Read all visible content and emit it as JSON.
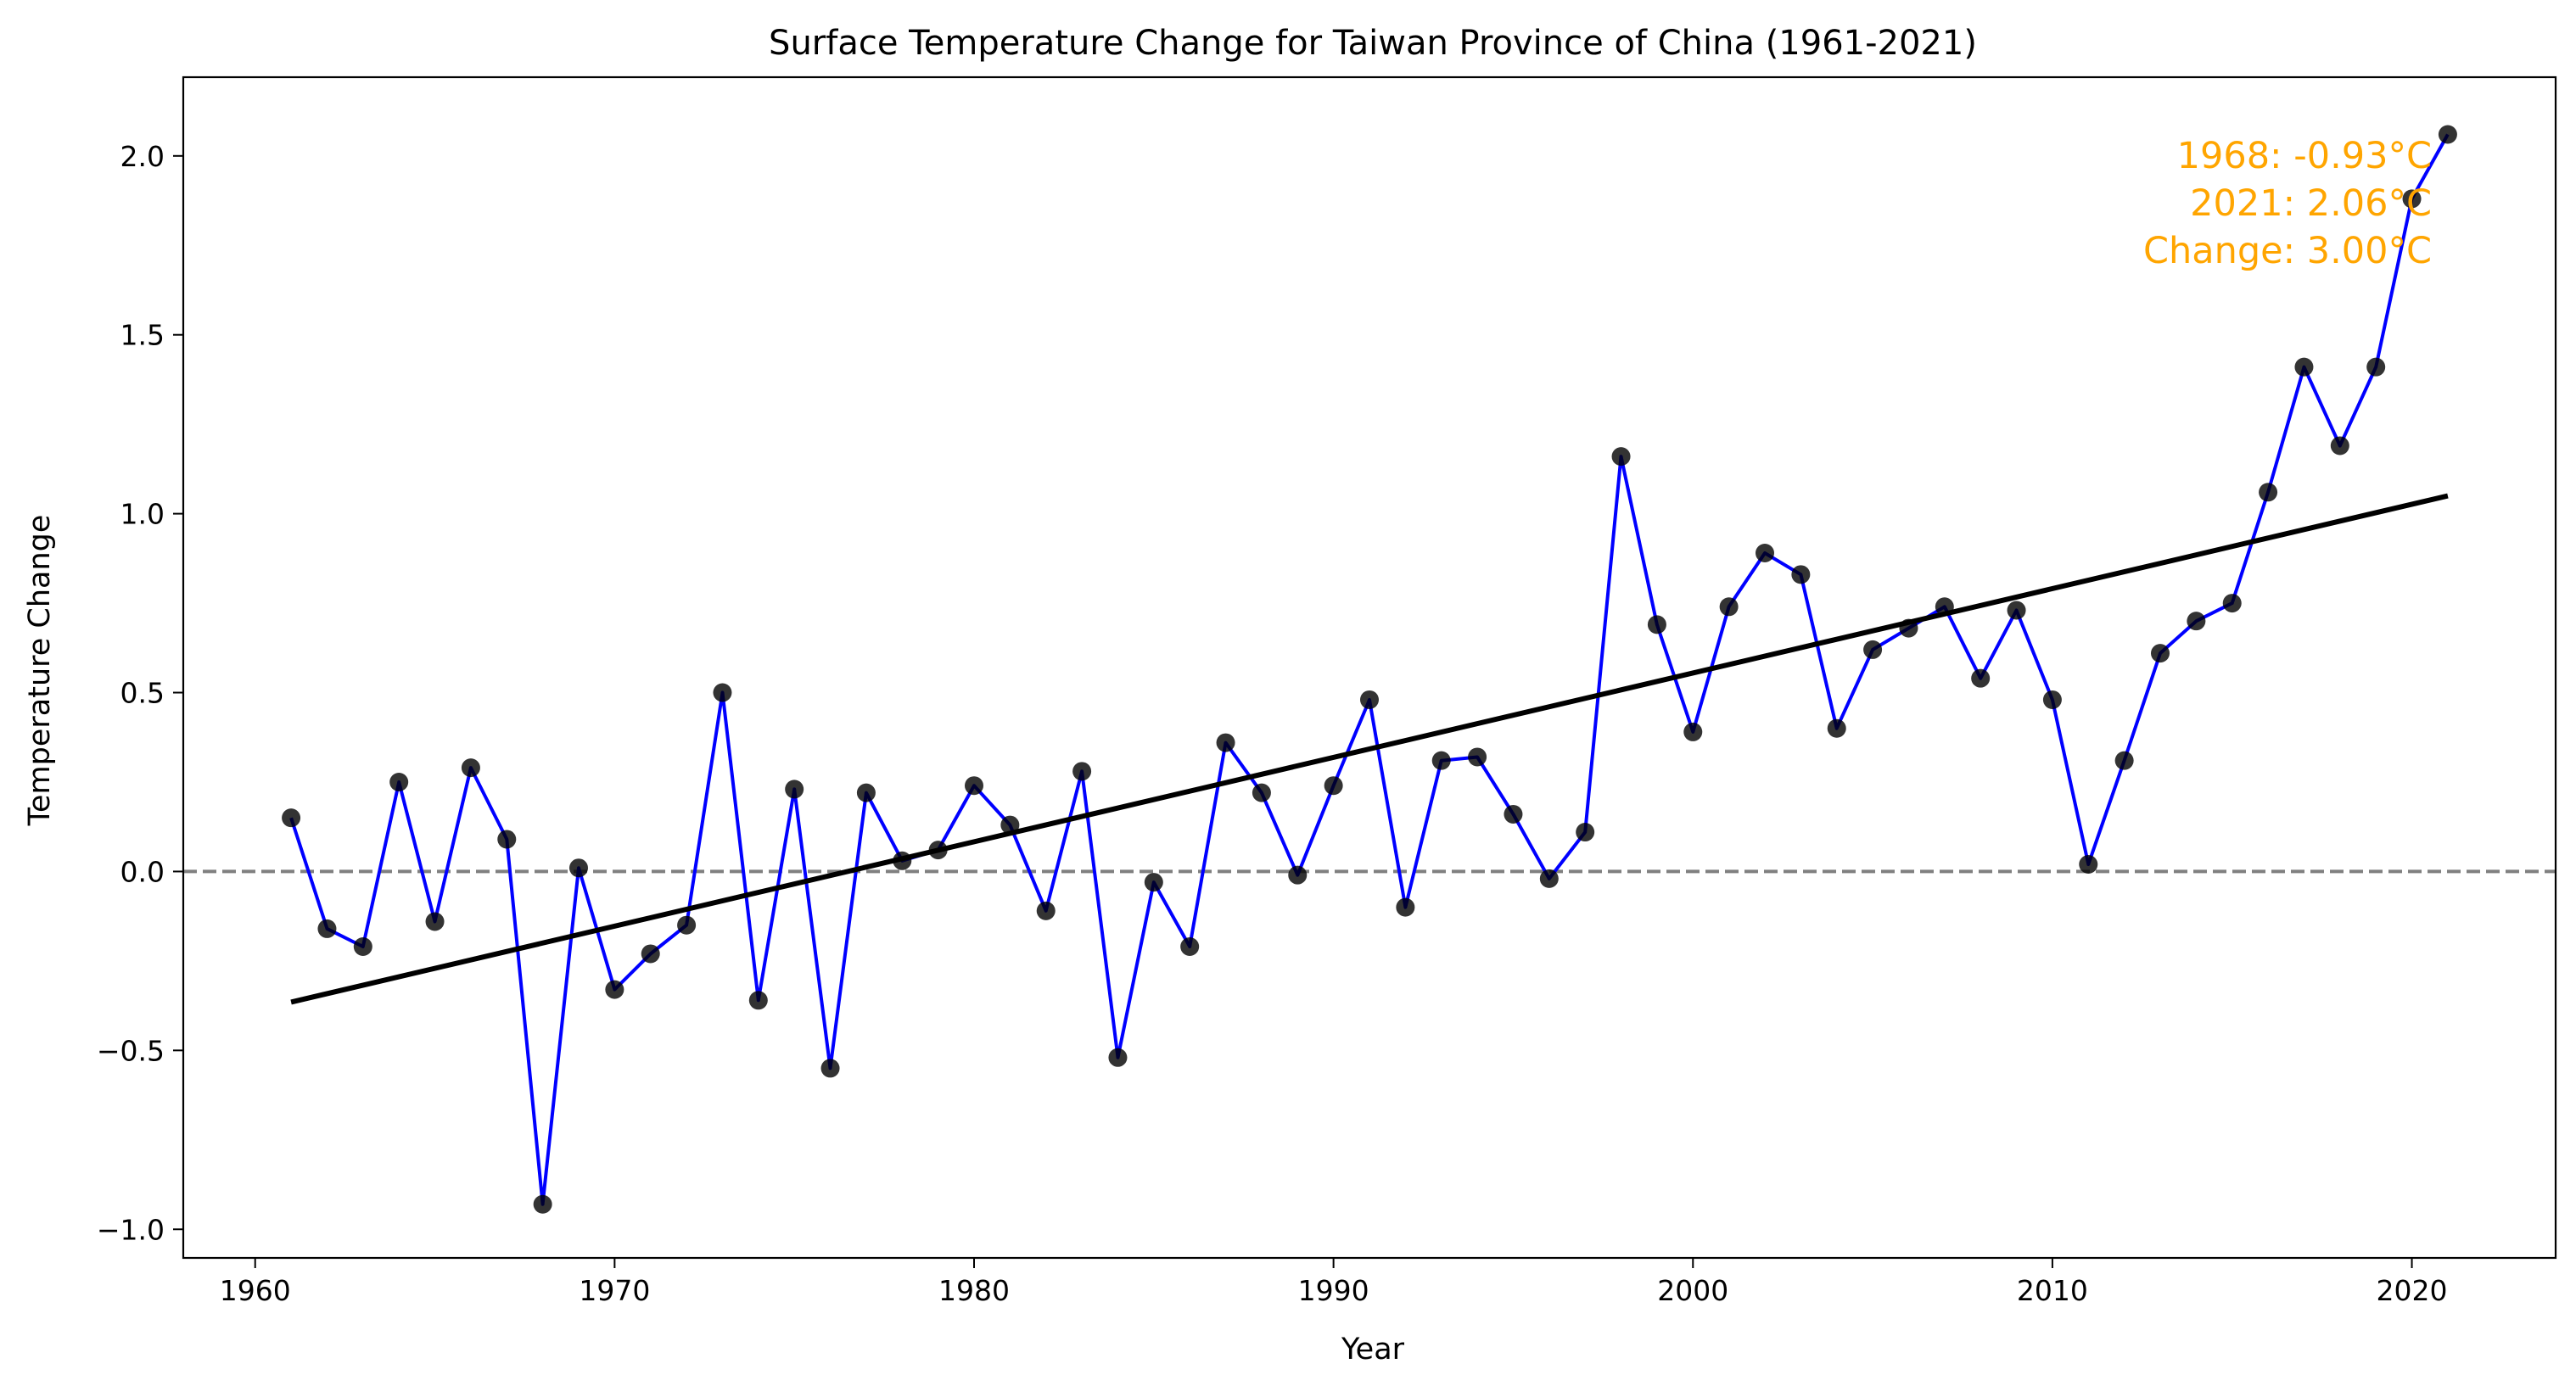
{
  "chart_data": {
    "type": "line",
    "title": "Surface Temperature Change for Taiwan Province of China (1961-2021)",
    "xlabel": "Year",
    "ylabel": "Temperature Change",
    "xlim": [
      1958.0,
      2024.0
    ],
    "ylim": [
      -1.08,
      2.22
    ],
    "xticks": [
      1960,
      1970,
      1980,
      1990,
      2000,
      2010,
      2020
    ],
    "yticks": [
      -1.0,
      -0.5,
      0.0,
      0.5,
      1.0,
      1.5,
      2.0
    ],
    "ytick_labels": [
      "−1.0",
      "−0.5",
      "0.0",
      "0.5",
      "1.0",
      "1.5",
      "2.0"
    ],
    "x": [
      1961,
      1962,
      1963,
      1964,
      1965,
      1966,
      1967,
      1968,
      1969,
      1970,
      1971,
      1972,
      1973,
      1974,
      1975,
      1976,
      1977,
      1978,
      1979,
      1980,
      1981,
      1982,
      1983,
      1984,
      1985,
      1986,
      1987,
      1988,
      1989,
      1990,
      1991,
      1992,
      1993,
      1994,
      1995,
      1996,
      1997,
      1998,
      1999,
      2000,
      2001,
      2002,
      2003,
      2004,
      2005,
      2006,
      2007,
      2008,
      2009,
      2010,
      2011,
      2012,
      2013,
      2014,
      2015,
      2016,
      2017,
      2018,
      2019,
      2020,
      2021
    ],
    "series": [
      {
        "values": [
          0.15,
          -0.16,
          -0.21,
          0.25,
          -0.14,
          0.29,
          0.09,
          -0.93,
          0.01,
          -0.33,
          -0.23,
          -0.15,
          0.5,
          -0.36,
          0.23,
          -0.55,
          0.22,
          0.03,
          0.06,
          0.24,
          0.13,
          -0.11,
          0.28,
          -0.52,
          -0.03,
          -0.21,
          0.36,
          0.22,
          -0.01,
          0.24,
          0.48,
          -0.1,
          0.31,
          0.32,
          0.16,
          -0.02,
          0.11,
          1.16,
          0.69,
          0.39,
          0.74,
          0.89,
          0.83,
          0.4,
          0.62,
          0.68,
          0.74,
          0.54,
          0.73,
          0.48,
          0.02,
          0.31,
          0.61,
          0.7,
          0.75,
          1.06,
          1.41,
          1.19,
          1.41,
          1.88,
          2.06
        ],
        "color": "#0000ff",
        "marker_color": "#000000"
      }
    ],
    "trend_line": {
      "x": [
        1961,
        2021
      ],
      "y": [
        -0.365,
        1.05
      ],
      "color": "#000000"
    },
    "reference_line": {
      "y": 0.0,
      "style": "dashed",
      "color": "#808080"
    },
    "annotation": [
      "1968: -0.93°C",
      "2021: 2.06°C",
      "Change: 3.00°C"
    ],
    "annotation_color": "#ffa500",
    "annotation_placement": "top-right",
    "grid": false
  }
}
